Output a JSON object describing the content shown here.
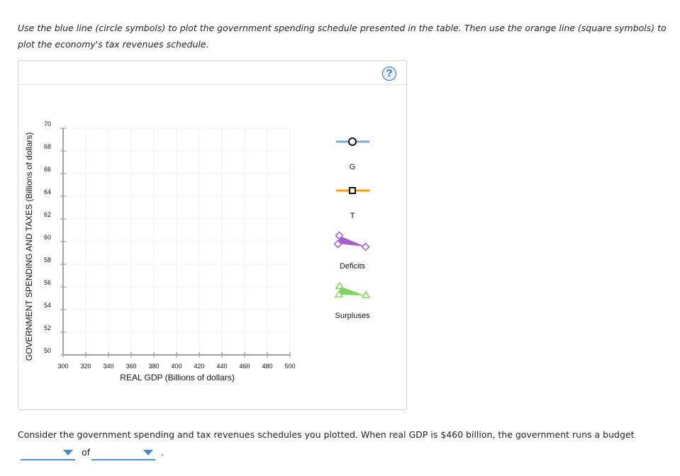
{
  "instructions": "Use the blue line (circle symbols) to plot the government spending schedule presented in the table. Then use the orange line (square symbols) to plot the economy's tax revenues schedule.",
  "panel": {
    "help_label": "?",
    "help_icon": "question-circle-icon"
  },
  "chart_data": {
    "type": "line",
    "title": "",
    "xlabel": "REAL GDP (Billions of dollars)",
    "ylabel": "GOVERNMENT SPENDING AND TAXES (Billions of dollars)",
    "xlim": [
      300,
      500
    ],
    "ylim": [
      50,
      70
    ],
    "x_ticks": [
      "300",
      "320",
      "340",
      "360",
      "380",
      "400",
      "420",
      "440",
      "460",
      "480",
      "500"
    ],
    "y_ticks": [
      "50",
      "52",
      "54",
      "56",
      "58",
      "60",
      "62",
      "64",
      "66",
      "68",
      "70"
    ],
    "grid": true,
    "series": [],
    "legend_position": "right",
    "legend": [
      {
        "label": "G",
        "tool": "blue line (circle symbols)",
        "color": "#7ea6d0",
        "marker": "circle"
      },
      {
        "label": "T",
        "tool": "orange line (square symbols)",
        "color": "#ff9900",
        "marker": "square"
      },
      {
        "label": "Deficits",
        "tool": "purple triangle region",
        "color": "#a65bd1",
        "marker": "diamond"
      },
      {
        "label": "Surpluses",
        "tool": "green triangle region",
        "color": "#7fd45e",
        "marker": "triangle"
      }
    ]
  },
  "question": {
    "text": "Consider the government spending and tax revenues schedules you plotted. When real GDP is $460 billion, the government runs a budget",
    "of_label": "of",
    "period": ".",
    "dropdown1_value": "",
    "dropdown2_value": ""
  }
}
